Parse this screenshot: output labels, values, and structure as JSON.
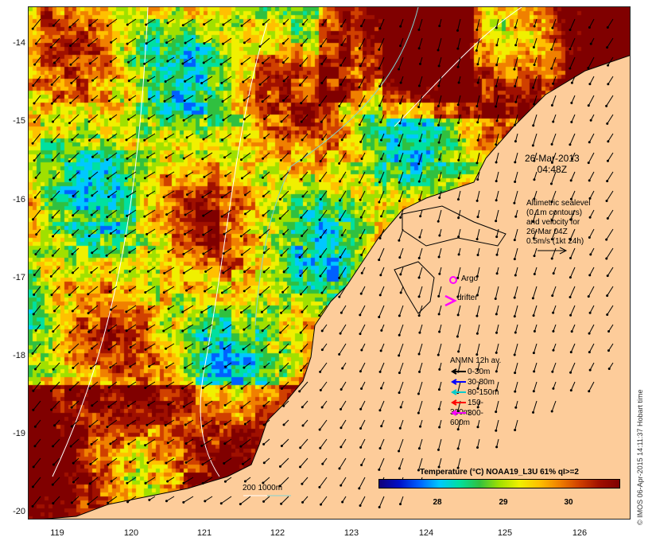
{
  "map": {
    "lat_labels": [
      "-14",
      "-15",
      "-16",
      "-17",
      "-18",
      "-19",
      "-20"
    ],
    "lon_labels": [
      "119",
      "120",
      "121",
      "122",
      "123",
      "124",
      "125",
      "126"
    ],
    "lat_range": [
      -20.1,
      -13.6
    ],
    "lon_range": [
      118.6,
      126.7
    ]
  },
  "annotations": {
    "date": "26-Mar-2013",
    "time": "04:48Z",
    "altimetry_lines": [
      "Altimetric sealevel",
      "(0.1m contours)",
      "and velocity for",
      "26-Mar 04Z",
      "0.5m/s (1kt 24h)"
    ],
    "argo_label": "Argo",
    "drifter_label": "drifter",
    "scale_label": "200  1000m"
  },
  "anmn_legend": {
    "title": "ANMN 12h av.",
    "items": [
      {
        "label": "0-30m",
        "color": "#000000"
      },
      {
        "label": "30-80m",
        "color": "#0000ff"
      },
      {
        "label": "80-150m",
        "color": "#00cccc"
      },
      {
        "label": "150-300m",
        "color": "#ff0000"
      },
      {
        "label": "300-600m",
        "color": "#ff00ff"
      }
    ]
  },
  "colorbar": {
    "title": "Temperature (°C) NOAA19_L3U 61% qI>=2",
    "ticks": [
      "28",
      "29",
      "30"
    ],
    "colors": [
      "#10007a",
      "#0010c8",
      "#0060ff",
      "#00c8ff",
      "#00e0a0",
      "#30c040",
      "#a0e000",
      "#f0f000",
      "#ffc000",
      "#f08000",
      "#d04000",
      "#a01000",
      "#800000"
    ]
  },
  "credit": "© IMOS 06-Apr-2015 14:11:37 Hobart time"
}
